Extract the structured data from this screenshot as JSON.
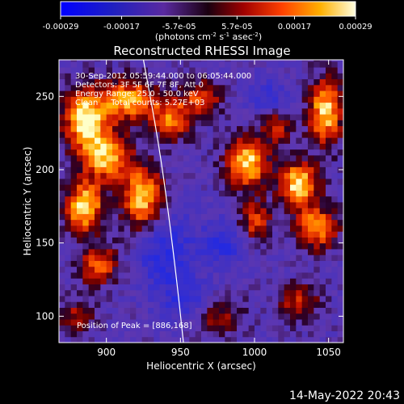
{
  "chart_data": {
    "type": "heatmap",
    "title": "Reconstructed RHESSI Image",
    "xlabel": "Heliocentric X (arcsec)",
    "ylabel": "Heliocentric Y (arcsec)",
    "xlim": [
      868,
      1060
    ],
    "ylim": [
      82,
      275
    ],
    "x_ticks": [
      900,
      950,
      1000,
      1050
    ],
    "y_ticks": [
      100,
      150,
      200,
      250
    ],
    "colorbar": {
      "ticks": [
        "-0.00029",
        "-0.00017",
        "-5.7e-05",
        "5.7e-05",
        "0.00017",
        "0.00029"
      ],
      "unit_main": "(photons cm",
      "unit_exp1": "-2",
      "unit_s": " s",
      "unit_exp2": "-1",
      "unit_asec": " asec",
      "unit_exp3": "-2",
      "unit_close": ")",
      "range": [
        -0.00029,
        0.00029
      ]
    },
    "annotations": {
      "time_range": "30-Sep-2012 05:59:44.000 to 06:05:44.000",
      "detectors": "Detectors: 3F 5F 6F 7F 8F, Att 0",
      "energy": "Energy Range: 25.0 - 50.0 keV",
      "method": "Clean     Total counts: 5.27E+03",
      "peak": "Position of Peak = [886,168]"
    },
    "limb_curve": [
      [
        925,
        275
      ],
      [
        935,
        220
      ],
      [
        942,
        170
      ],
      [
        948,
        120
      ],
      [
        952,
        82
      ]
    ],
    "hot_regions": [
      {
        "x": 885,
        "y": 235,
        "sx": 10,
        "sy": 14,
        "a": 1.0
      },
      {
        "x": 900,
        "y": 210,
        "sx": 11,
        "sy": 12,
        "a": 0.9
      },
      {
        "x": 915,
        "y": 248,
        "sx": 14,
        "sy": 10,
        "a": 0.85
      },
      {
        "x": 885,
        "y": 175,
        "sx": 9,
        "sy": 12,
        "a": 1.0
      },
      {
        "x": 925,
        "y": 180,
        "sx": 10,
        "sy": 16,
        "a": 0.95
      },
      {
        "x": 945,
        "y": 235,
        "sx": 10,
        "sy": 10,
        "a": 0.7
      },
      {
        "x": 965,
        "y": 250,
        "sx": 9,
        "sy": 8,
        "a": 0.6
      },
      {
        "x": 895,
        "y": 135,
        "sx": 10,
        "sy": 10,
        "a": 0.65
      },
      {
        "x": 880,
        "y": 100,
        "sx": 8,
        "sy": 8,
        "a": 0.45
      },
      {
        "x": 995,
        "y": 205,
        "sx": 10,
        "sy": 12,
        "a": 0.95
      },
      {
        "x": 1000,
        "y": 165,
        "sx": 8,
        "sy": 10,
        "a": 0.6
      },
      {
        "x": 1030,
        "y": 190,
        "sx": 9,
        "sy": 11,
        "a": 1.0
      },
      {
        "x": 1042,
        "y": 160,
        "sx": 10,
        "sy": 10,
        "a": 0.8
      },
      {
        "x": 1048,
        "y": 240,
        "sx": 8,
        "sy": 16,
        "a": 0.95
      },
      {
        "x": 1030,
        "y": 110,
        "sx": 10,
        "sy": 9,
        "a": 0.5
      },
      {
        "x": 975,
        "y": 100,
        "sx": 12,
        "sy": 10,
        "a": 0.45
      },
      {
        "x": 1015,
        "y": 230,
        "sx": 8,
        "sy": 8,
        "a": 0.55
      }
    ],
    "cold_regions": [
      {
        "x": 940,
        "y": 145,
        "sx": 14,
        "sy": 20,
        "a": 0.9
      },
      {
        "x": 980,
        "y": 150,
        "sx": 10,
        "sy": 12,
        "a": 0.8
      },
      {
        "x": 955,
        "y": 110,
        "sx": 12,
        "sy": 10,
        "a": 0.7
      },
      {
        "x": 1010,
        "y": 250,
        "sx": 10,
        "sy": 10,
        "a": 0.6
      }
    ]
  },
  "footer": {
    "timestamp": "14-May-2022 20:43"
  }
}
